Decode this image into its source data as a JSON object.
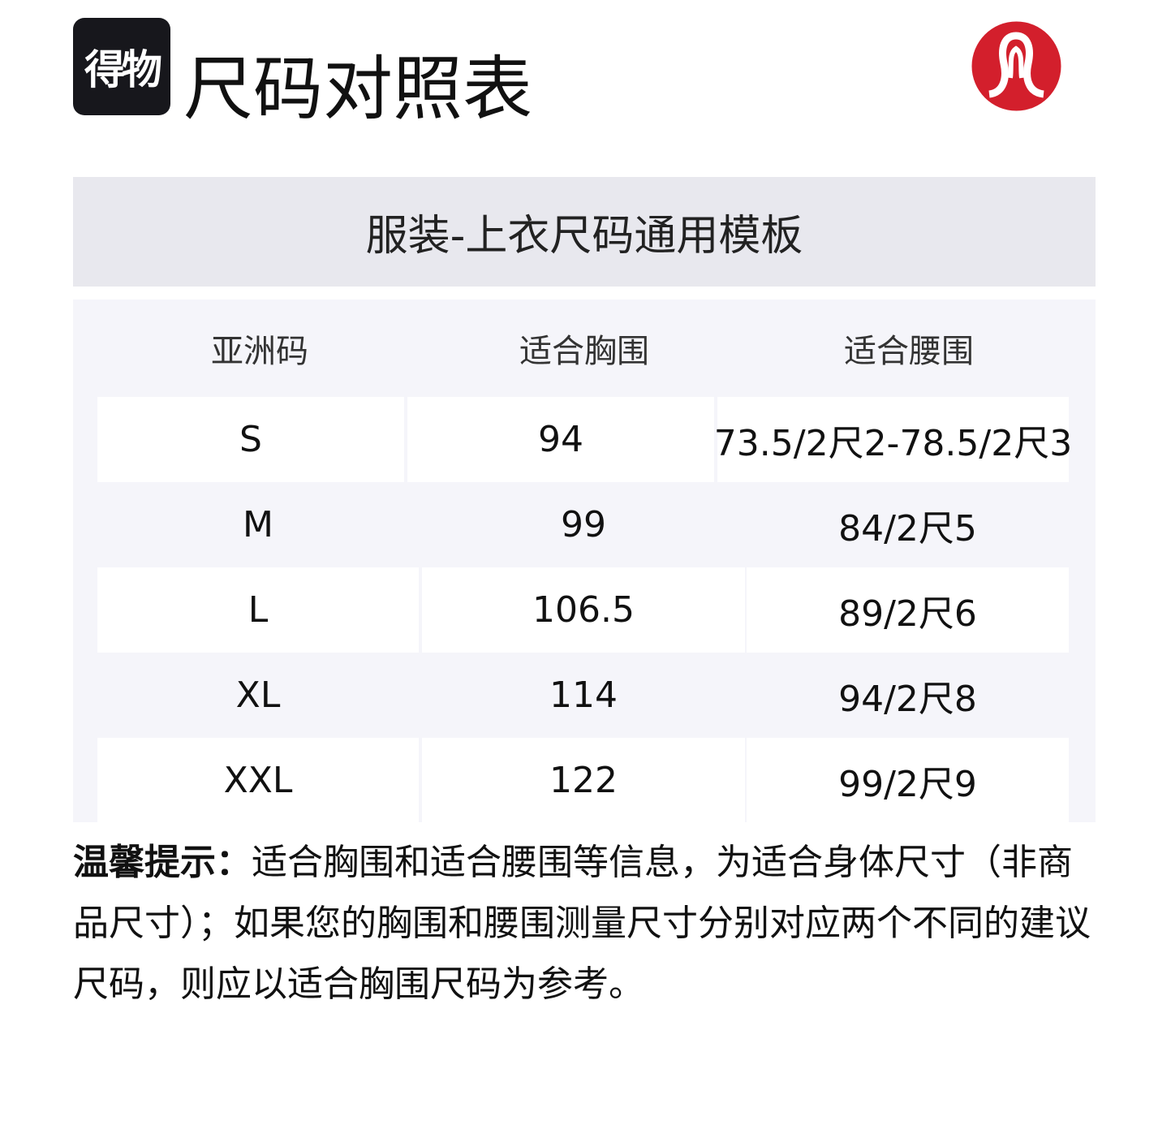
{
  "brand_logo_text": "得物",
  "title": "尺码对照表",
  "partner_logo": {
    "name": "lululemon-logo",
    "color": "#d31f2c"
  },
  "section_title": "服装-上衣尺码通用模板",
  "table": {
    "headers": [
      "亚洲码",
      "适合胸围",
      "适合腰围"
    ],
    "rows": [
      [
        "S",
        "94",
        "73.5/2尺2-78.5/2尺3"
      ],
      [
        "M",
        "99",
        "84/2尺5"
      ],
      [
        "L",
        "106.5",
        "89/2尺6"
      ],
      [
        "XL",
        "114",
        "94/2尺8"
      ],
      [
        "XXL",
        "122",
        "99/2尺9"
      ]
    ]
  },
  "note": {
    "label": "温馨提示：",
    "text": "适合胸围和适合腰围等信息，为适合身体尺寸（非商品尺寸）；如果您的胸围和腰围测量尺寸分别对应两个不同的建议尺码，则应以适合胸围尺码为参考。"
  }
}
